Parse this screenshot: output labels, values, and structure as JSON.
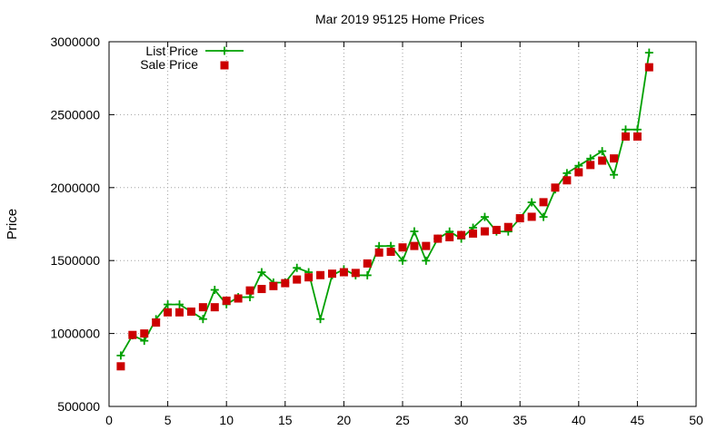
{
  "chart_data": {
    "type": "line",
    "title": "Mar 2019 95125 Home Prices",
    "xlabel": "",
    "ylabel": "Price",
    "xlim": [
      0,
      50
    ],
    "ylim": [
      500000,
      3000000
    ],
    "xticks": [
      0,
      5,
      10,
      15,
      20,
      25,
      30,
      35,
      40,
      45,
      50
    ],
    "yticks": [
      500000,
      1000000,
      1500000,
      2000000,
      2500000,
      3000000
    ],
    "grid": true,
    "legend_position": "top-left",
    "x": [
      1,
      2,
      3,
      4,
      5,
      6,
      7,
      8,
      9,
      10,
      11,
      12,
      13,
      14,
      15,
      16,
      17,
      18,
      19,
      20,
      21,
      22,
      23,
      24,
      25,
      26,
      27,
      28,
      29,
      30,
      31,
      32,
      33,
      34,
      35,
      36,
      37,
      38,
      39,
      40,
      41,
      42,
      43,
      44,
      45,
      46
    ],
    "series": [
      {
        "name": "List Price",
        "style": "line-with-plus-markers",
        "color": "#00a000",
        "values": [
          849000,
          988000,
          950000,
          1098000,
          1199000,
          1199000,
          1150000,
          1099000,
          1299000,
          1200000,
          1249000,
          1249000,
          1420000,
          1349000,
          1349000,
          1450000,
          1420000,
          1099000,
          1399000,
          1440000,
          1399000,
          1399000,
          1599000,
          1600000,
          1499000,
          1700000,
          1499000,
          1650000,
          1699000,
          1650000,
          1725000,
          1799000,
          1699000,
          1699000,
          1790000,
          1899000,
          1799000,
          1988000,
          2099000,
          2150000,
          2199000,
          2250000,
          2088000,
          2398000,
          2398000,
          2925000
        ]
      },
      {
        "name": "Sale Price",
        "style": "square-markers",
        "color": "#cc0000",
        "values": [
          775000,
          990000,
          1000000,
          1075000,
          1145000,
          1145000,
          1150000,
          1180000,
          1180000,
          1225000,
          1240000,
          1295000,
          1305000,
          1325000,
          1345000,
          1370000,
          1385000,
          1400000,
          1410000,
          1420000,
          1415000,
          1480000,
          1555000,
          1560000,
          1590000,
          1600000,
          1600000,
          1650000,
          1660000,
          1675000,
          1685000,
          1700000,
          1710000,
          1730000,
          1790000,
          1800000,
          1900000,
          2000000,
          2050000,
          2105000,
          2155000,
          2185000,
          2200000,
          2350000,
          2350000,
          2825000
        ]
      }
    ]
  }
}
